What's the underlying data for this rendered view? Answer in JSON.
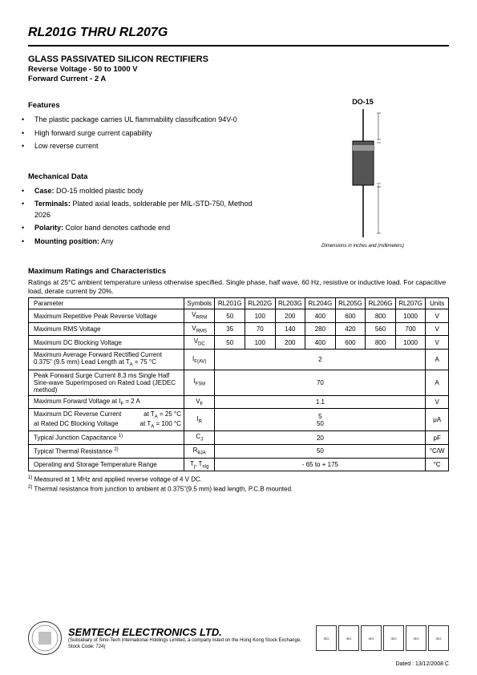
{
  "header": {
    "title": "RL201G THRU RL207G",
    "subtitle": "GLASS PASSIVATED SILICON RECTIFIERS",
    "spec1": "Reverse Voltage - 50 to 1000 V",
    "spec2": "Forward Current - 2 A"
  },
  "features": {
    "heading": "Features",
    "items": [
      "The plastic package carries UL flammability classification 94V-0",
      "High forward surge current capability",
      "Low reverse current"
    ]
  },
  "mechanical": {
    "heading": "Mechanical Data",
    "items": [
      {
        "label": "Case:",
        "text": " DO-15 molded plastic body"
      },
      {
        "label": "Terminals:",
        "text": " Plated axial leads, solderable per MIL-STD-750, Method 2026"
      },
      {
        "label": "Polarity:",
        "text": " Color band denotes cathode end"
      },
      {
        "label": "Mounting position:",
        "text": " Any"
      }
    ]
  },
  "package": {
    "label": "DO-15",
    "note": "Dimensions in inches and (millimeters)"
  },
  "ratings": {
    "heading": "Maximum Ratings and Characteristics",
    "desc": "Ratings at 25°C ambient temperature unless otherwise specified. Single phase, half wave, 60 Hz, resistive or inductive load. For capacitive load, derate current by 20%."
  },
  "table": {
    "head": {
      "param": "Parameter",
      "sym": "Symbols",
      "units": "Units",
      "parts": [
        "RL201G",
        "RL202G",
        "RL203G",
        "RL204G",
        "RL205G",
        "RL206G",
        "RL207G"
      ]
    },
    "rows": [
      {
        "param": "Maximum Repetitive Peak Reverse Voltage",
        "sym": "V",
        "symsub": "RRM",
        "vals": [
          "50",
          "100",
          "200",
          "400",
          "600",
          "800",
          "1000"
        ],
        "unit": "V"
      },
      {
        "param": "Maximum RMS Voltage",
        "sym": "V",
        "symsub": "RMS",
        "vals": [
          "35",
          "70",
          "140",
          "280",
          "420",
          "560",
          "700"
        ],
        "unit": "V"
      },
      {
        "param": "Maximum DC Blocking Voltage",
        "sym": "V",
        "symsub": "DC",
        "vals": [
          "50",
          "100",
          "200",
          "400",
          "600",
          "800",
          "1000"
        ],
        "unit": "V"
      },
      {
        "param": "Maximum Average Forward Rectified Current 0.375\" (9.5 mm) Lead Length at T",
        "paramsub": "A",
        "paramsuffix": " = 75 °C",
        "sym": "I",
        "symsub": "F(AV)",
        "span": "2",
        "unit": "A"
      },
      {
        "param": "Peak Forward Surge Current 8.3 ms Single Half Sine-wave Superimposed on Rated Load (JEDEC method)",
        "sym": "I",
        "symsub": "FSM",
        "span": "70",
        "unit": "A"
      },
      {
        "param": "Maximum Forward Voltage at I",
        "paramsub": "F",
        "paramsuffix": " = 2 A",
        "sym": "V",
        "symsub": "F",
        "span": "1.1",
        "unit": "V"
      },
      {
        "param2": true,
        "line1": "Maximum DC Reverse Current",
        "suffix1": "at T",
        "sub1": "A",
        "end1": " = 25 °C",
        "line2": "at Rated DC Blocking Voltage",
        "suffix2": "at T",
        "sub2": "A",
        "end2": " = 100 °C",
        "sym": "I",
        "symsub": "R",
        "span1": "5",
        "span2": "50",
        "unit": "μA"
      },
      {
        "param": "Typical Junction Capacitance ",
        "sup": "1)",
        "sym": "C",
        "symsub": "J",
        "span": "20",
        "unit": "pF"
      },
      {
        "param": "Typical Thermal Resistance ",
        "sup": "2)",
        "sym": "R",
        "symsub": "θJA",
        "span": "50",
        "unit": "°C/W"
      },
      {
        "param": "Operating and Storage Temperature Range",
        "sym": "T",
        "symsub": "j",
        "sym2": ", T",
        "symsub2": "stg",
        "span": "- 65 to + 175",
        "unit": "°C"
      }
    ]
  },
  "footnotes": {
    "n1": "Measured at 1 MHz and applied reverse voltage of 4 V DC.",
    "n2": "Thermal resistance from junction to ambient at 0.375\"(9.5 mm) lead length, P.C.B mounted."
  },
  "footer": {
    "company": "SEMTECH ELECTRONICS LTD.",
    "sub": "(Subsidiary of Sino-Tech International Holdings Limited, a company listed on the Hong Kong Stock Exchange, Stock Code: 724)",
    "dated": "Dated : 13/12/2008   C"
  }
}
